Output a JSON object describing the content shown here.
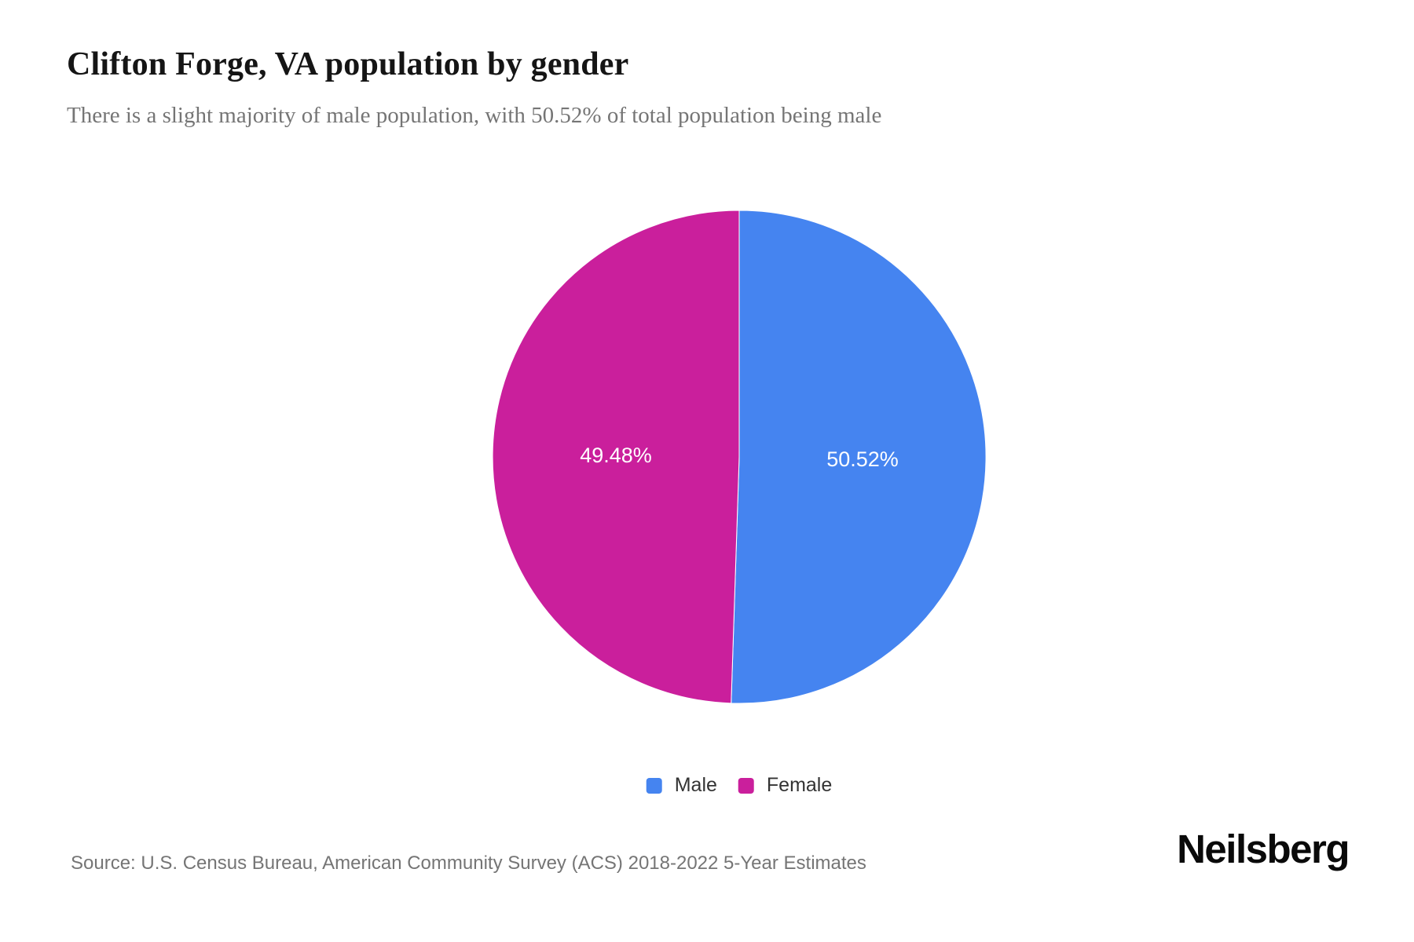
{
  "header": {
    "title": "Clifton Forge, VA population by gender",
    "subtitle": "There is a slight majority of male population, with 50.52% of total population being male"
  },
  "chart_data": {
    "type": "pie",
    "title": "Clifton Forge, VA population by gender",
    "series": [
      {
        "name": "Male",
        "value": 50.52,
        "label": "50.52%",
        "color": "#4584F0"
      },
      {
        "name": "Female",
        "value": 49.48,
        "label": "49.48%",
        "color": "#CA1F9C"
      }
    ],
    "start_angle_deg": 0,
    "direction": "clockwise",
    "slice_label_color": "#FFFFFF",
    "slice_border_color": "#FFFFFF",
    "legend_position": "bottom",
    "label_radius_ratio": 0.5
  },
  "footer": {
    "source": "Source: U.S. Census Bureau, American Community Survey (ACS) 2018-2022 5-Year Estimates",
    "brand": "Neilsberg"
  }
}
